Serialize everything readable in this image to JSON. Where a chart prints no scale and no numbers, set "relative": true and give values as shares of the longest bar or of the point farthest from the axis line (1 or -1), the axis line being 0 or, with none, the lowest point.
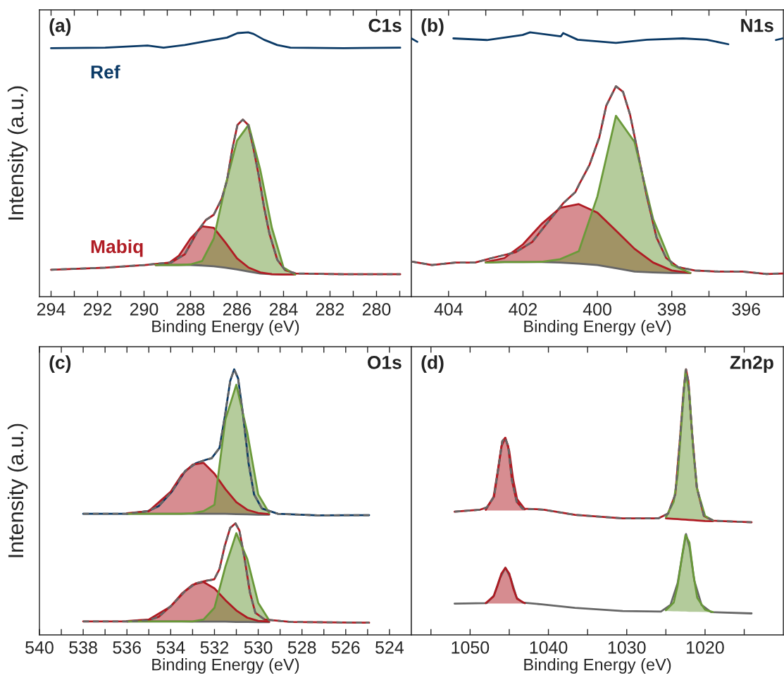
{
  "chart_data": [
    {
      "type": "line",
      "relative": true,
      "xlabel": "Binding Energy (eV)",
      "ylabel": "Intensity (a.u.)",
      "tick_labels": "x",
      "grid": false,
      "legend": false,
      "annotations": [
        "(a)",
        "C1s"
      ],
      "xlim": [
        294.5,
        278.5
      ],
      "xticks": [
        294,
        {
          "value": 293,
          "label": null
        },
        292,
        {
          "value": 291,
          "label": null
        },
        290,
        {
          "value": 289,
          "label": null
        },
        288,
        {
          "value": 287,
          "label": null
        },
        286,
        {
          "value": 285,
          "label": null
        },
        284,
        {
          "value": 283,
          "label": null
        },
        282,
        {
          "value": 281,
          "label": null
        },
        280,
        {
          "value": 279,
          "label": null
        }
      ],
      "series": [
        {
          "type": "line",
          "color": "#b01c24",
          "x": [
            289.5,
            289,
            288.5,
            288,
            287.5,
            287,
            286.5,
            286,
            285.5,
            285,
            284.5,
            284,
            283.5
          ],
          "values": [
            0.12,
            0.123,
            0.155,
            0.22,
            0.266,
            0.26,
            0.205,
            0.145,
            0.11,
            0.092,
            0.085,
            0.084,
            0.084
          ],
          "upper": [
            0.12,
            0.123,
            0.155,
            0.22,
            0.266,
            0.26,
            0.205,
            0.145,
            0.11,
            0.092,
            0.085,
            0.084,
            0.084
          ],
          "lower": [
            0.12,
            0.12,
            0.12,
            0.12,
            0.118,
            0.115,
            0.11,
            0.103,
            0.095,
            0.088,
            0.085,
            0.084,
            0.084
          ]
        },
        {
          "type": "line",
          "color": "#6b9a3a",
          "x": [
            289.5,
            289,
            288.5,
            288,
            287.5,
            287,
            286.5,
            286,
            285.5,
            285,
            284.5,
            284,
            283.5
          ],
          "values": [
            0.12,
            0.12,
            0.12,
            0.122,
            0.135,
            0.22,
            0.42,
            0.59,
            0.65,
            0.48,
            0.26,
            0.11,
            0.084
          ],
          "upper": [
            0.12,
            0.12,
            0.12,
            0.122,
            0.135,
            0.22,
            0.42,
            0.59,
            0.65,
            0.48,
            0.26,
            0.11,
            0.084
          ],
          "lower": [
            0.12,
            0.12,
            0.12,
            0.12,
            0.118,
            0.115,
            0.11,
            0.103,
            0.095,
            0.088,
            0.085,
            0.084,
            0.084
          ]
        },
        {
          "type": "line",
          "color": "#666666",
          "x": [
            289.5,
            289,
            288.5,
            288,
            287.5,
            287,
            286.5,
            286,
            285.5,
            285,
            284.5,
            284,
            283.5
          ],
          "values": [
            0.12,
            0.12,
            0.12,
            0.12,
            0.118,
            0.115,
            0.11,
            0.103,
            0.095,
            0.088,
            0.085,
            0.084,
            0.084
          ]
        },
        {
          "type": "line",
          "name": "Ref",
          "color": "#0b3a66",
          "x": [
            294,
            291.67,
            289.85,
            289.16,
            288.25,
            287.11,
            286.43,
            285.98,
            285.52,
            285.29,
            284.84,
            284.27,
            283.7,
            281.42,
            278.98
          ],
          "values": [
            0.94,
            0.942,
            0.95,
            0.942,
            0.952,
            0.97,
            0.98,
            0.997,
            1.0,
            0.994,
            0.972,
            0.952,
            0.942,
            0.94,
            0.942
          ]
        },
        {
          "type": "line",
          "name": "Mabiq",
          "color": "#b01c24",
          "x": [
            294,
            291.67,
            289.96,
            288.82,
            288.25,
            287.68,
            287.34,
            287.0,
            286.66,
            286.43,
            286.2,
            285.98,
            285.75,
            285.52,
            285.29,
            285.07,
            284.84,
            284.61,
            284.27,
            283.93,
            283.47,
            281.42,
            278.98
          ],
          "values": [
            0.102,
            0.11,
            0.12,
            0.13,
            0.16,
            0.25,
            0.29,
            0.31,
            0.37,
            0.44,
            0.56,
            0.65,
            0.67,
            0.65,
            0.56,
            0.46,
            0.34,
            0.24,
            0.14,
            0.1,
            0.088,
            0.085,
            0.085
          ]
        },
        {
          "type": "line",
          "line_style": "dashed",
          "color": "#666666",
          "x": [
            294,
            291.67,
            289.96,
            288.82,
            288.25,
            287.68,
            287.34,
            287.0,
            286.66,
            286.43,
            286.2,
            285.98,
            285.75,
            285.52,
            285.29,
            285.07,
            284.84,
            284.61,
            284.27,
            283.93,
            283.47,
            281.42,
            278.98
          ],
          "values": [
            0.102,
            0.11,
            0.12,
            0.13,
            0.16,
            0.25,
            0.29,
            0.31,
            0.37,
            0.44,
            0.56,
            0.65,
            0.67,
            0.65,
            0.56,
            0.46,
            0.34,
            0.24,
            0.14,
            0.1,
            0.088,
            0.085,
            0.085
          ]
        }
      ]
    },
    {
      "type": "line",
      "relative": true,
      "xlabel": "Binding Energy (eV)",
      "tick_labels": "x",
      "grid": false,
      "legend": false,
      "annotations": [
        "(b)",
        "N1s"
      ],
      "xlim": [
        405,
        395
      ],
      "xticks": [
        404,
        {
          "value": 403,
          "label": null
        },
        402,
        {
          "value": 401,
          "label": null
        },
        400,
        {
          "value": 399,
          "label": null
        },
        398,
        {
          "value": 397,
          "label": null
        },
        396
      ],
      "series": [
        {
          "type": "line",
          "color": "#b01c24",
          "x": [
            403,
            402.5,
            402,
            401.5,
            401,
            400.5,
            400,
            399.5,
            399,
            398.5,
            398,
            397.5
          ],
          "values": [
            0.131,
            0.146,
            0.198,
            0.275,
            0.336,
            0.35,
            0.318,
            0.25,
            0.181,
            0.129,
            0.099,
            0.09
          ],
          "upper": [
            0.131,
            0.146,
            0.198,
            0.275,
            0.336,
            0.35,
            0.318,
            0.25,
            0.181,
            0.129,
            0.099,
            0.09
          ],
          "lower": [
            0.129,
            0.131,
            0.131,
            0.131,
            0.129,
            0.125,
            0.12,
            0.108,
            0.095,
            0.092,
            0.09,
            0.09
          ]
        },
        {
          "type": "line",
          "color": "#6b9a3a",
          "x": [
            403,
            402.5,
            402,
            401.5,
            401,
            400.5,
            400,
            399.5,
            399,
            398.5,
            398,
            397.5
          ],
          "values": [
            0.129,
            0.131,
            0.131,
            0.132,
            0.142,
            0.172,
            0.379,
            0.684,
            0.585,
            0.293,
            0.12,
            0.09
          ],
          "upper": [
            0.129,
            0.131,
            0.131,
            0.132,
            0.142,
            0.172,
            0.379,
            0.684,
            0.585,
            0.293,
            0.12,
            0.09
          ],
          "lower": [
            0.129,
            0.131,
            0.131,
            0.131,
            0.129,
            0.125,
            0.12,
            0.108,
            0.095,
            0.092,
            0.09,
            0.09
          ]
        },
        {
          "type": "line",
          "color": "#666666",
          "x": [
            403,
            402.5,
            402,
            401.5,
            401,
            400.5,
            400,
            399.5,
            399,
            398.5,
            398,
            397.5
          ],
          "values": [
            0.129,
            0.131,
            0.131,
            0.131,
            0.129,
            0.125,
            0.12,
            0.108,
            0.095,
            0.092,
            0.09,
            0.09
          ]
        },
        {
          "type": "line",
          "color": "#0b3a66",
          "x": [
            405.0,
            404.84,
            404.0,
            403.87,
            402.97,
            402.01,
            401.81,
            400.98,
            400.92,
            400.53,
            399.5,
            398.67,
            397.7,
            397.06,
            396.48,
            396.0,
            395.2,
            395.02
          ],
          "values": [
            0.977,
            0.964,
            null,
            0.977,
            0.971,
            0.99,
            1.0,
            0.985,
            0.997,
            0.972,
            0.96,
            0.972,
            0.977,
            0.972,
            0.955,
            null,
            0.971,
            0.977
          ]
        },
        {
          "type": "line",
          "color": "#b01c24",
          "x": [
            405.0,
            404.45,
            403.81,
            403.29,
            402.84,
            402.2,
            401.75,
            401.37,
            400.92,
            400.59,
            400.47,
            400.21,
            399.95,
            399.76,
            399.5,
            399.31,
            399.12,
            398.92,
            398.67,
            398.41,
            398.15,
            397.83,
            397.38,
            396.74,
            396.1,
            395.45,
            395.02
          ],
          "values": [
            0.133,
            0.12,
            0.129,
            0.129,
            0.146,
            0.168,
            0.207,
            0.275,
            0.353,
            0.396,
            0.43,
            0.499,
            0.602,
            0.723,
            0.796,
            0.775,
            0.688,
            0.551,
            0.379,
            0.224,
            0.146,
            0.112,
            0.099,
            0.095,
            0.095,
            0.086,
            0.088
          ]
        },
        {
          "type": "line",
          "line_style": "dashed",
          "color": "#666666",
          "x": [
            405.0,
            404.45,
            403.81,
            403.29,
            402.84,
            402.2,
            401.75,
            401.37,
            400.92,
            400.59,
            400.47,
            400.21,
            399.95,
            399.76,
            399.5,
            399.31,
            399.12,
            398.92,
            398.67,
            398.41,
            398.15,
            397.83,
            397.38,
            396.74,
            396.1,
            395.45,
            395.02
          ],
          "values": [
            0.133,
            0.12,
            0.129,
            0.129,
            0.146,
            0.168,
            0.207,
            0.275,
            0.353,
            0.396,
            0.43,
            0.499,
            0.602,
            0.723,
            0.796,
            0.775,
            0.688,
            0.551,
            0.379,
            0.224,
            0.146,
            0.112,
            0.099,
            0.095,
            0.095,
            0.086,
            0.088
          ]
        }
      ]
    },
    {
      "type": "line",
      "relative": true,
      "xlabel": "Binding Energy (eV)",
      "ylabel": "Intensity (a.u.)",
      "tick_labels": "x",
      "grid": false,
      "legend": false,
      "annotations": [
        "(c)",
        "O1s"
      ],
      "xlim": [
        540,
        523
      ],
      "xticks": [
        540,
        {
          "value": 539,
          "label": null
        },
        538,
        {
          "value": 537,
          "label": null
        },
        536,
        {
          "value": 535,
          "label": null
        },
        534,
        {
          "value": 533,
          "label": null
        },
        532,
        {
          "value": 531,
          "label": null
        },
        530,
        {
          "value": 529,
          "label": null
        },
        528,
        {
          "value": 527,
          "label": null
        },
        526,
        {
          "value": 525,
          "label": null
        },
        524
      ],
      "series": [
        {
          "type": "line",
          "color": "#b01c24",
          "x": [
            536,
            535,
            534,
            533.5,
            533,
            532.5,
            532,
            531.5,
            531,
            530.5,
            530,
            529.5
          ],
          "values": [
            0.458,
            0.466,
            0.539,
            0.602,
            0.641,
            0.648,
            0.607,
            0.549,
            0.5,
            0.471,
            0.459,
            0.455
          ],
          "upper": [
            0.458,
            0.466,
            0.539,
            0.602,
            0.641,
            0.648,
            0.607,
            0.549,
            0.5,
            0.471,
            0.459,
            0.455
          ],
          "lower": [
            0.456,
            0.456,
            0.456,
            0.456,
            0.456,
            0.456,
            0.456,
            0.456,
            0.455,
            0.454,
            0.453,
            0.453
          ]
        },
        {
          "type": "line",
          "color": "#6b9a3a",
          "x": [
            536,
            535,
            534,
            533.5,
            533,
            532.5,
            532,
            531.5,
            531,
            530.5,
            530,
            529.5
          ],
          "values": [
            0.456,
            0.456,
            0.456,
            0.456,
            0.458,
            0.466,
            0.49,
            0.811,
            0.942,
            0.762,
            0.529,
            0.459
          ],
          "upper": [
            0.456,
            0.456,
            0.456,
            0.456,
            0.458,
            0.466,
            0.49,
            0.811,
            0.942,
            0.762,
            0.529,
            0.459
          ],
          "lower": [
            0.456,
            0.456,
            0.456,
            0.456,
            0.456,
            0.456,
            0.456,
            0.456,
            0.455,
            0.454,
            0.453,
            0.453
          ]
        },
        {
          "type": "line",
          "color": "#666666",
          "x": [
            536,
            535,
            534,
            533.5,
            533,
            532.5,
            532,
            531.5,
            531,
            530.5,
            530,
            529.5
          ],
          "values": [
            0.456,
            0.456,
            0.456,
            0.456,
            0.456,
            0.456,
            0.456,
            0.456,
            0.455,
            0.454,
            0.453,
            0.453
          ]
        },
        {
          "type": "line",
          "color": "#0b3a66",
          "x": [
            538.0,
            536.0,
            535.04,
            534.55,
            533.95,
            533.34,
            532.86,
            532.37,
            532.13,
            531.77,
            531.53,
            531.28,
            531.1,
            530.92,
            530.68,
            530.44,
            530.19,
            529.83,
            529.1,
            527.29,
            524.93
          ],
          "values": [
            0.456,
            0.456,
            0.466,
            0.485,
            0.539,
            0.617,
            0.646,
            0.66,
            0.665,
            0.704,
            0.82,
            0.956,
            1.0,
            0.966,
            0.82,
            0.646,
            0.529,
            0.476,
            0.456,
            0.45,
            0.451
          ]
        },
        {
          "type": "line",
          "line_style": "dashed",
          "color": "#666666",
          "x": [
            538.0,
            536.0,
            535.04,
            534.55,
            533.95,
            533.34,
            532.86,
            532.37,
            532.13,
            531.77,
            531.53,
            531.28,
            531.1,
            530.92,
            530.68,
            530.44,
            530.19,
            529.83,
            529.1,
            527.29,
            524.93
          ],
          "values": [
            0.456,
            0.456,
            0.466,
            0.485,
            0.539,
            0.617,
            0.646,
            0.66,
            0.665,
            0.704,
            0.82,
            0.956,
            1.0,
            0.966,
            0.82,
            0.646,
            0.529,
            0.476,
            0.456,
            0.45,
            0.451
          ]
        },
        {
          "type": "line",
          "color": "#ad1a22",
          "x": [
            536,
            535,
            534,
            533.5,
            533,
            532.5,
            532,
            531.5,
            531,
            530.5,
            530,
            529.5
          ],
          "values": [
            0.052,
            0.058,
            0.107,
            0.155,
            0.189,
            0.199,
            0.175,
            0.131,
            0.092,
            0.065,
            0.053,
            0.05
          ],
          "upper": [
            0.052,
            0.058,
            0.107,
            0.155,
            0.189,
            0.199,
            0.175,
            0.131,
            0.092,
            0.065,
            0.053,
            0.05
          ],
          "lower": [
            0.051,
            0.051,
            0.051,
            0.051,
            0.05,
            0.05,
            0.05,
            0.05,
            0.049,
            0.049,
            0.048,
            0.048
          ]
        },
        {
          "type": "line",
          "color": "#689838",
          "x": [
            536,
            535,
            534,
            533.5,
            533,
            532.5,
            532,
            531.5,
            531,
            530.5,
            530,
            529.5
          ],
          "values": [
            0.051,
            0.051,
            0.051,
            0.051,
            0.051,
            0.058,
            0.102,
            0.257,
            0.383,
            0.286,
            0.121,
            0.055
          ],
          "upper": [
            0.051,
            0.051,
            0.051,
            0.051,
            0.051,
            0.058,
            0.102,
            0.257,
            0.383,
            0.286,
            0.121,
            0.055
          ],
          "lower": [
            0.051,
            0.051,
            0.051,
            0.051,
            0.05,
            0.05,
            0.05,
            0.05,
            0.049,
            0.049,
            0.048,
            0.048
          ]
        },
        {
          "type": "line",
          "color": "#666666",
          "x": [
            536,
            535,
            534,
            533.5,
            533,
            532.5,
            532,
            531.5,
            531,
            530.5,
            530,
            529.5
          ],
          "values": [
            0.051,
            0.051,
            0.051,
            0.051,
            0.05,
            0.05,
            0.05,
            0.05,
            0.049,
            0.049,
            0.048,
            0.048
          ]
        },
        {
          "type": "line",
          "color": "#b01c24",
          "x": [
            538,
            536,
            535.04,
            534.55,
            533.95,
            533.34,
            532.86,
            532.37,
            532.01,
            531.77,
            531.53,
            531.28,
            531.04,
            530.86,
            530.62,
            530.38,
            530.13,
            529.71,
            528.5,
            524.93
          ],
          "values": [
            0.051,
            0.051,
            0.055,
            0.068,
            0.112,
            0.165,
            0.194,
            0.204,
            0.209,
            0.248,
            0.335,
            0.403,
            0.42,
            0.393,
            0.286,
            0.16,
            0.083,
            0.058,
            0.049,
            0.046
          ]
        },
        {
          "type": "line",
          "line_style": "dashed",
          "color": "#666666",
          "x": [
            538,
            536,
            535.04,
            534.55,
            533.95,
            533.34,
            532.86,
            532.37,
            532.01,
            531.77,
            531.53,
            531.28,
            531.04,
            530.86,
            530.62,
            530.38,
            530.13,
            529.71,
            528.5,
            524.93
          ],
          "values": [
            0.051,
            0.051,
            0.055,
            0.068,
            0.112,
            0.165,
            0.194,
            0.204,
            0.209,
            0.248,
            0.335,
            0.403,
            0.42,
            0.393,
            0.286,
            0.16,
            0.083,
            0.058,
            0.049,
            0.046
          ]
        }
      ]
    },
    {
      "type": "line",
      "relative": true,
      "xlabel": "Binding Energy (eV)",
      "tick_labels": "x",
      "grid": false,
      "legend": false,
      "annotations": [
        "(d)",
        "Zn2p"
      ],
      "xlim": [
        1057.5,
        1010
      ],
      "xticks": [
        {
          "value": 1055,
          "label": null
        },
        1050,
        {
          "value": 1045,
          "label": null
        },
        1040,
        {
          "value": 1035,
          "label": null
        },
        1030,
        {
          "value": 1025,
          "label": null
        },
        1020,
        {
          "value": 1015,
          "label": null
        }
      ],
      "series": [
        {
          "type": "line",
          "color": "#b01c24",
          "x": [
            1048,
            1047,
            1046.5,
            1046,
            1045.5,
            1045,
            1044.5,
            1044,
            1043
          ],
          "values": [
            0.471,
            0.52,
            0.611,
            0.71,
            0.742,
            0.692,
            0.584,
            0.511,
            0.473
          ],
          "upper": [
            0.471,
            0.52,
            0.611,
            0.71,
            0.742,
            0.692,
            0.584,
            0.511,
            0.473
          ],
          "lower": [
            0.468,
            0.468,
            0.468,
            0.468,
            0.468,
            0.468,
            0.468,
            0.468,
            0.468
          ]
        },
        {
          "type": "line",
          "color": "#6b9a3a",
          "x": [
            1025,
            1024,
            1023.5,
            1023,
            1022.5,
            1022,
            1021.5,
            1021,
            1020,
            1019
          ],
          "values": [
            0.443,
            0.502,
            0.602,
            0.801,
            0.995,
            0.909,
            0.692,
            0.548,
            0.448,
            0.431
          ],
          "upper": [
            0.443,
            0.502,
            0.602,
            0.801,
            0.995,
            0.909,
            0.692,
            0.548,
            0.448,
            0.431
          ],
          "lower": [
            0.439,
            0.437,
            0.436,
            0.435,
            0.434,
            0.433,
            0.432,
            0.431,
            0.429,
            0.428
          ]
        },
        {
          "type": "line",
          "color": "#b01c24",
          "x": [
            1025,
            1024,
            1023.5,
            1023,
            1022.5,
            1022,
            1021.5,
            1021,
            1020,
            1019
          ],
          "values": [
            0.439,
            0.437,
            0.436,
            0.435,
            0.434,
            0.433,
            0.432,
            0.431,
            0.429,
            0.428
          ]
        },
        {
          "type": "line",
          "color": "#b01c24",
          "x": [
            1051.98,
            1048.78,
            1047.87,
            1046.95,
            1046.34,
            1045.89,
            1045.52,
            1045.13,
            1044.67,
            1044.06,
            1043.3,
            1041.47,
            1040.56,
            1036.6,
            1030.51,
            1025.94,
            1024.72,
            1023.8,
            1023.2,
            1022.74,
            1022.43,
            1022.13,
            1021.67,
            1021.06,
            1020.15,
            1018.93,
            1014.06
          ],
          "values": [
            0.464,
            0.471,
            0.48,
            0.52,
            0.638,
            0.729,
            0.742,
            0.71,
            0.584,
            0.502,
            0.475,
            0.473,
            0.471,
            0.452,
            0.439,
            0.439,
            0.457,
            0.529,
            0.738,
            0.919,
            1.0,
            0.955,
            0.765,
            0.557,
            0.448,
            0.43,
            0.424
          ]
        },
        {
          "type": "line",
          "line_style": "dashed",
          "color": "#666666",
          "x": [
            1051.98,
            1048.78,
            1047.87,
            1046.95,
            1046.34,
            1045.89,
            1045.52,
            1045.13,
            1044.67,
            1044.06,
            1043.3,
            1041.47,
            1040.56,
            1036.6,
            1030.51,
            1025.94,
            1024.72,
            1023.8,
            1023.2,
            1022.74,
            1022.43,
            1022.13,
            1021.67,
            1021.06,
            1020.15,
            1018.93,
            1014.06
          ],
          "values": [
            0.464,
            0.471,
            0.48,
            0.52,
            0.638,
            0.729,
            0.742,
            0.71,
            0.584,
            0.502,
            0.475,
            0.473,
            0.471,
            0.452,
            0.439,
            0.439,
            0.457,
            0.529,
            0.738,
            0.919,
            1.0,
            0.955,
            0.765,
            0.557,
            0.448,
            0.43,
            0.424
          ]
        },
        {
          "type": "line",
          "color": "#ad1a22",
          "x": [
            1048,
            1047,
            1046.5,
            1046,
            1045.5,
            1045,
            1044.5,
            1044,
            1043
          ],
          "values": [
            0.12,
            0.145,
            0.186,
            0.231,
            0.253,
            0.231,
            0.176,
            0.136,
            0.119
          ],
          "upper": [
            0.12,
            0.145,
            0.186,
            0.231,
            0.253,
            0.231,
            0.176,
            0.136,
            0.119
          ],
          "lower": [
            0.118,
            0.118,
            0.118,
            0.118,
            0.118,
            0.118,
            0.118,
            0.118,
            0.118
          ]
        },
        {
          "type": "line",
          "color": "#689838",
          "x": [
            1025,
            1024,
            1023.5,
            1023,
            1022.5,
            1022,
            1021.5,
            1021,
            1020,
            1019
          ],
          "values": [
            0.093,
            0.122,
            0.186,
            0.285,
            0.376,
            0.348,
            0.231,
            0.14,
            0.095,
            0.086
          ],
          "upper": [
            0.093,
            0.122,
            0.186,
            0.285,
            0.376,
            0.348,
            0.231,
            0.14,
            0.095,
            0.086
          ],
          "lower": [
            0.09,
            0.089,
            0.089,
            0.088,
            0.088,
            0.087,
            0.087,
            0.087,
            0.086,
            0.085
          ]
        },
        {
          "type": "line",
          "color": "#666666",
          "x": [
            1051.98,
            1047.87,
            1046.95,
            1046.19,
            1045.49,
            1044.82,
            1044.06,
            1043.3,
            1040.86,
            1036.6,
            1030.51,
            1025.63,
            1024.41,
            1023.5,
            1022.89,
            1022.43,
            1021.98,
            1021.37,
            1020.45,
            1019.24,
            1014.06
          ],
          "values": [
            0.118,
            0.12,
            0.149,
            0.213,
            0.253,
            0.213,
            0.14,
            0.122,
            0.115,
            0.102,
            0.09,
            0.088,
            0.113,
            0.195,
            0.303,
            0.38,
            0.33,
            0.204,
            0.113,
            0.086,
            0.081
          ]
        }
      ]
    }
  ]
}
